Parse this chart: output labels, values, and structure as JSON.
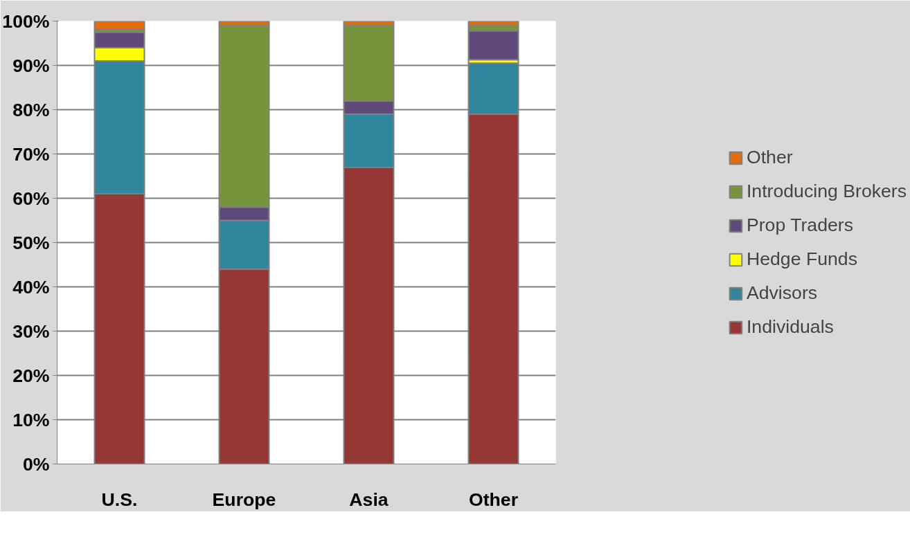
{
  "chart_data": {
    "type": "bar",
    "stacked": true,
    "categories": [
      "U.S.",
      "Europe",
      "Asia",
      "Other"
    ],
    "series": [
      {
        "name": "Individuals",
        "color": "#953735",
        "values": [
          61,
          44,
          67,
          79
        ]
      },
      {
        "name": "Advisors",
        "color": "#31859c",
        "values": [
          30,
          11,
          12,
          11.5
        ]
      },
      {
        "name": "Hedge Funds",
        "color": "#ffff00",
        "values": [
          3,
          0,
          0,
          0.8
        ]
      },
      {
        "name": "Prop Traders",
        "color": "#604a7b",
        "values": [
          3.5,
          3,
          3,
          6.5
        ]
      },
      {
        "name": "Introducing Brokers",
        "color": "#77933c",
        "values": [
          0.7,
          41,
          17,
          1.2
        ]
      },
      {
        "name": "Other",
        "color": "#e46c0a",
        "values": [
          1.8,
          1,
          1,
          1
        ]
      }
    ],
    "ylim": [
      0,
      100
    ],
    "yticks": [
      {
        "value": 0,
        "label": "0%"
      },
      {
        "value": 10,
        "label": "10%"
      },
      {
        "value": 20,
        "label": "20%"
      },
      {
        "value": 30,
        "label": "30%"
      },
      {
        "value": 40,
        "label": "40%"
      },
      {
        "value": 50,
        "label": "50%"
      },
      {
        "value": 60,
        "label": "60%"
      },
      {
        "value": 70,
        "label": "70%"
      },
      {
        "value": 80,
        "label": "80%"
      },
      {
        "value": 90,
        "label": "90%"
      },
      {
        "value": 100,
        "label": "100%"
      }
    ],
    "grid": "y",
    "legend": "right"
  }
}
